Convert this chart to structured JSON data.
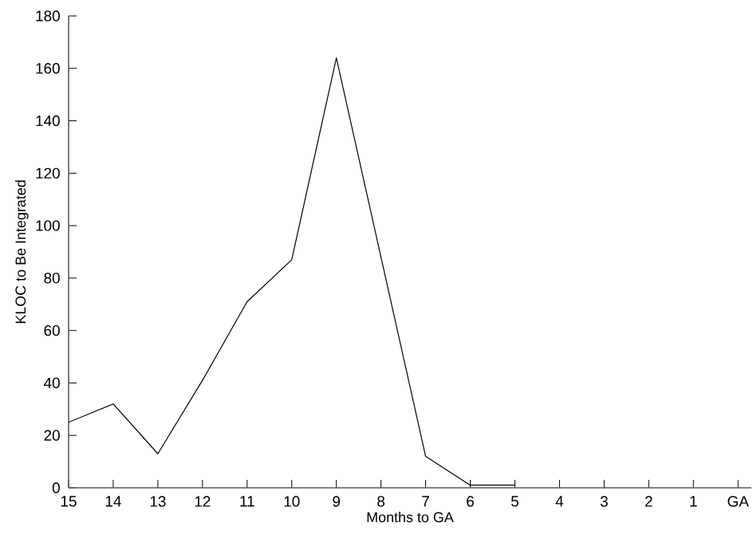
{
  "chart_data": {
    "type": "line",
    "xlabel": "Months to GA",
    "ylabel": "KLOC to Be Integrated",
    "categories": [
      "15",
      "14",
      "13",
      "12",
      "11",
      "10",
      "9",
      "8",
      "7",
      "6",
      "5",
      "4",
      "3",
      "2",
      "1",
      "GA"
    ],
    "values": [
      25,
      32,
      13,
      41,
      71,
      87,
      164,
      88,
      12,
      1,
      1,
      null,
      null,
      null,
      null,
      null
    ],
    "color": "#000000",
    "ylim": [
      0,
      180
    ],
    "yticks": [
      0,
      20,
      40,
      60,
      80,
      100,
      120,
      140,
      160,
      180
    ],
    "grid": false,
    "marker": "none",
    "line_style": "solid"
  }
}
